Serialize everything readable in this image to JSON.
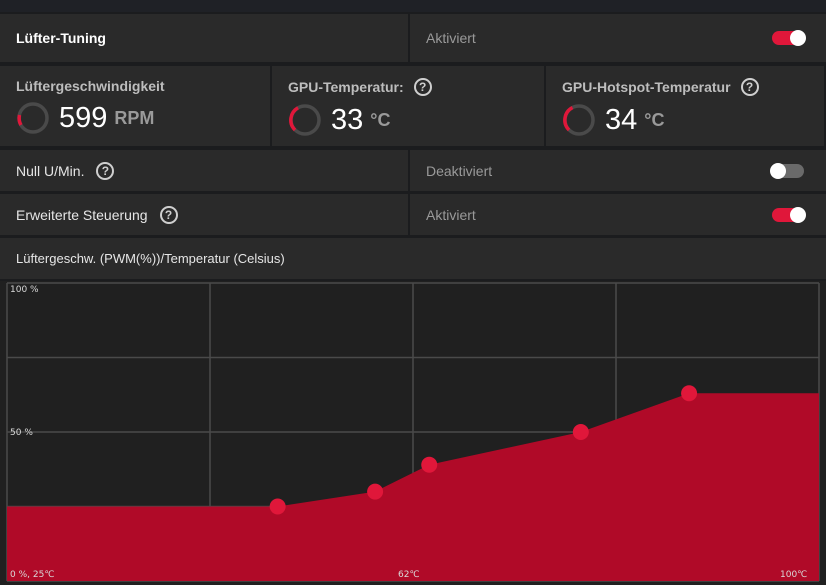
{
  "fan_tuning": {
    "label": "Lüfter-Tuning",
    "state": "Aktiviert",
    "toggle": "on"
  },
  "metrics": [
    {
      "title": "Lüftergeschwindigkeit",
      "value": "599",
      "unit": "RPM",
      "help": false
    },
    {
      "title": "GPU-Temperatur:",
      "value": "33",
      "unit": "°C",
      "help": true
    },
    {
      "title": "GPU-Hotspot-Temperatur",
      "value": "34",
      "unit": "°C",
      "help": true
    }
  ],
  "zero_rpm": {
    "label": "Null U/Min.",
    "state": "Deaktiviert",
    "toggle": "off"
  },
  "advanced": {
    "label": "Erweiterte Steuerung",
    "state": "Aktiviert",
    "toggle": "on"
  },
  "curve_header": "Lüftergeschw. (PWM(%))/Temperatur (Celsius)",
  "help_glyph": "?",
  "colors": {
    "accent": "#e0173a",
    "fill": "#b00a28",
    "panel": "#2a2a2a",
    "grid": "#4a4a4a"
  },
  "chart_data": {
    "type": "area",
    "title": "Lüftergeschw. (PWM(%))/Temperatur (Celsius)",
    "xlabel": "",
    "ylabel": "",
    "xlim": [
      25,
      100
    ],
    "ylim": [
      0,
      100
    ],
    "x_tick_labels": [
      "0 %, 25℃",
      "62℃",
      "100℃"
    ],
    "y_tick_labels": [
      "100 %",
      "50 %"
    ],
    "points": [
      {
        "x": 50,
        "y": 25
      },
      {
        "x": 59,
        "y": 30
      },
      {
        "x": 64,
        "y": 39
      },
      {
        "x": 78,
        "y": 50
      },
      {
        "x": 88,
        "y": 63
      }
    ],
    "grid": true
  }
}
